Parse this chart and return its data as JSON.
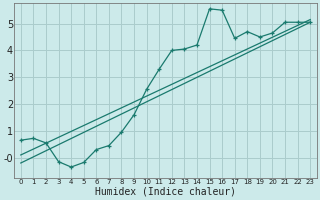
{
  "xlabel": "Humidex (Indice chaleur)",
  "bg_color": "#cceaea",
  "grid_color": "#aacccc",
  "line_color": "#1a7a6e",
  "xlim": [
    -0.5,
    23.5
  ],
  "ylim": [
    -0.75,
    5.75
  ],
  "xticks": [
    0,
    1,
    2,
    3,
    4,
    5,
    6,
    7,
    8,
    9,
    10,
    11,
    12,
    13,
    14,
    15,
    16,
    17,
    18,
    19,
    20,
    21,
    22,
    23
  ],
  "yticks": [
    0,
    1,
    2,
    3,
    4,
    5
  ],
  "ytick_labels": [
    "-0",
    "1",
    "2",
    "3",
    "4",
    "5"
  ],
  "line1_x": [
    0,
    23
  ],
  "line1_y": [
    -0.2,
    5.05
  ],
  "line2_x": [
    0,
    23
  ],
  "line2_y": [
    0.1,
    5.15
  ],
  "curve_x": [
    0,
    1,
    2,
    3,
    4,
    5,
    6,
    7,
    8,
    9,
    10,
    11,
    12,
    13,
    14,
    15,
    16,
    17,
    18,
    19,
    20,
    21,
    22,
    23
  ],
  "curve_y": [
    0.65,
    0.72,
    0.55,
    -0.15,
    -0.35,
    -0.18,
    0.3,
    0.45,
    0.95,
    1.6,
    2.55,
    3.3,
    4.0,
    4.05,
    4.2,
    5.55,
    5.5,
    4.45,
    4.7,
    4.5,
    4.65,
    5.05,
    5.05,
    5.05
  ]
}
